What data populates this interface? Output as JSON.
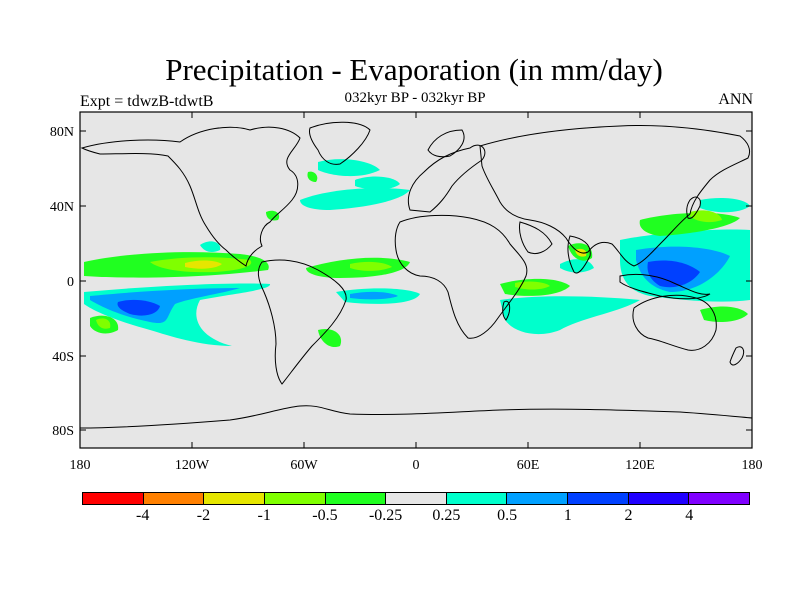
{
  "title": "Precipitation - Evaporation (in mm/day)",
  "subtitle": "032kyr BP - 032kyr BP",
  "left_label": "Expt = tdwzB-tdwtB",
  "right_label": "ANN",
  "map": {
    "ocean_color": "#e6e6e6",
    "coast_color": "#000000",
    "lat_ticks": [
      "80N",
      "40N",
      "0",
      "40S",
      "80S"
    ],
    "lon_ticks": [
      "180",
      "120W",
      "60W",
      "0",
      "60E",
      "120E",
      "180"
    ]
  },
  "colorbar": {
    "colors": [
      "#ff0000",
      "#ff8000",
      "#e6e600",
      "#80ff00",
      "#20ff20",
      "#e6e6e6",
      "#00ffcc",
      "#00a0ff",
      "#0040ff",
      "#2000ff",
      "#8000ff"
    ],
    "labels": [
      "-4",
      "-2",
      "-1",
      "-0.5",
      "-0.25",
      "0.25",
      "0.5",
      "1",
      "2",
      "4"
    ]
  }
}
